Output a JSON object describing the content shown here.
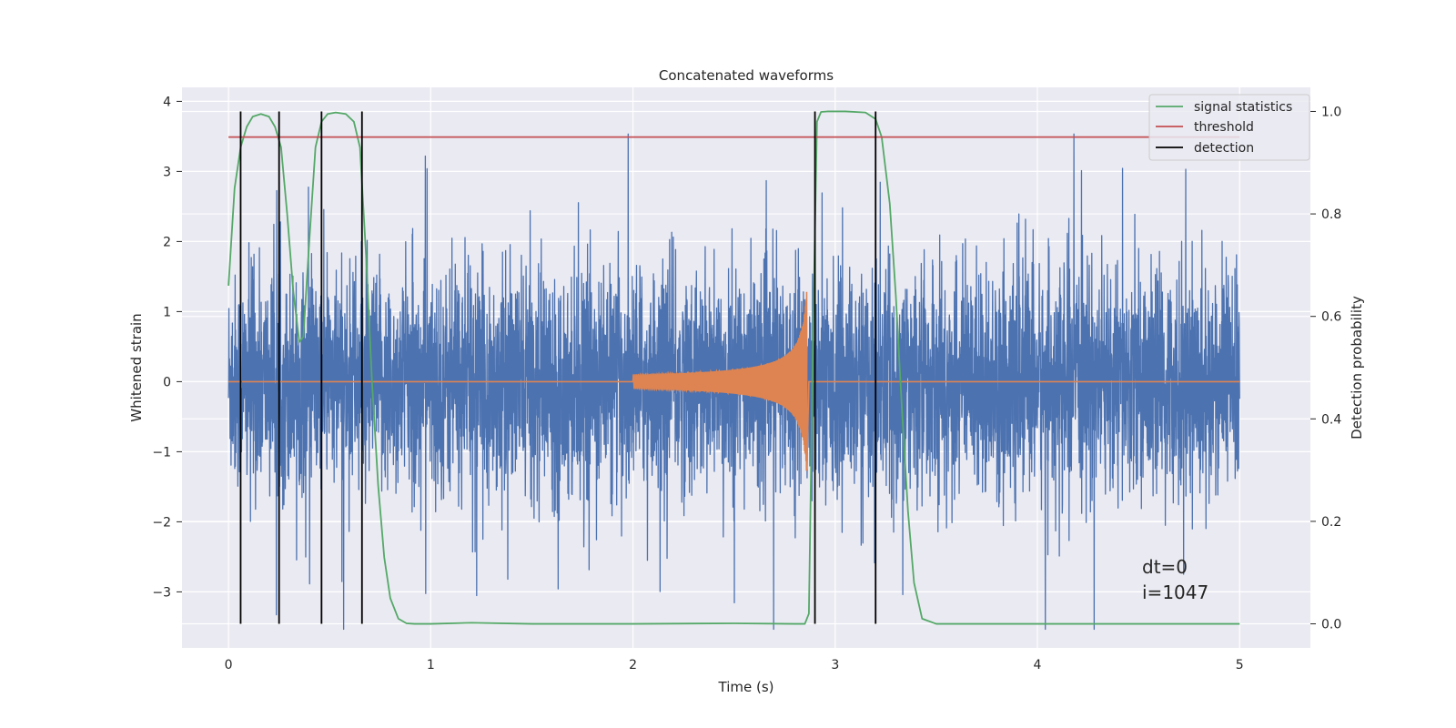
{
  "chart_data": {
    "type": "line",
    "title": "Concatenated waveforms",
    "xlabel": "Time (s)",
    "ylabel": "Whitened strain",
    "y2label": "Detection probability",
    "xlim": [
      -0.23,
      5.35
    ],
    "ylim": [
      -3.8,
      4.2
    ],
    "y2lim": [
      -0.047,
      1.047
    ],
    "xticks": [
      0,
      1,
      2,
      3,
      4,
      5
    ],
    "yticks": [
      -3,
      -2,
      -1,
      0,
      1,
      2,
      3,
      4
    ],
    "y2ticks": [
      0.0,
      0.2,
      0.4,
      0.6,
      0.8,
      1.0
    ],
    "xtick_labels": [
      "0",
      "1",
      "2",
      "3",
      "4",
      "5"
    ],
    "ytick_labels": [
      "−3",
      "−2",
      "−1",
      "0",
      "1",
      "2",
      "3",
      "4"
    ],
    "y2tick_labels": [
      "0.0",
      "0.2",
      "0.4",
      "0.6",
      "0.8",
      "1.0"
    ],
    "grid": true,
    "legend_position": "top-right",
    "series": [
      {
        "name": "",
        "axis": "left",
        "color": "#4c72b0",
        "kind": "noise",
        "x_range": [
          0,
          5
        ],
        "amplitude_typical": 1.0,
        "peak_max": 3.8,
        "peak_min": -3.5
      },
      {
        "name": "",
        "axis": "left",
        "color": "#dd8452",
        "kind": "chirp",
        "x_range": [
          0,
          5
        ],
        "chirp_start": 2.0,
        "chirp_end": 2.86,
        "peak_amplitude": 1.6
      },
      {
        "name": "signal statistics",
        "axis": "right",
        "color": "#55a868",
        "x": [
          0.0,
          0.03,
          0.06,
          0.09,
          0.12,
          0.16,
          0.2,
          0.23,
          0.26,
          0.29,
          0.32,
          0.35,
          0.37,
          0.4,
          0.43,
          0.46,
          0.49,
          0.53,
          0.58,
          0.62,
          0.65,
          0.68,
          0.71,
          0.74,
          0.77,
          0.8,
          0.84,
          0.88,
          0.92,
          1.0,
          1.2,
          1.5,
          2.0,
          2.5,
          2.8,
          2.85,
          2.87,
          2.89,
          2.91,
          2.93,
          2.96,
          3.05,
          3.15,
          3.2,
          3.23,
          3.27,
          3.3,
          3.33,
          3.36,
          3.39,
          3.43,
          3.5,
          4.0,
          4.5,
          5.0
        ],
        "y": [
          0.66,
          0.85,
          0.93,
          0.97,
          0.99,
          0.995,
          0.99,
          0.97,
          0.93,
          0.8,
          0.65,
          0.55,
          0.56,
          0.75,
          0.93,
          0.98,
          0.995,
          0.998,
          0.995,
          0.98,
          0.93,
          0.72,
          0.47,
          0.27,
          0.13,
          0.05,
          0.01,
          0.001,
          0.0,
          0.0,
          0.002,
          0.0,
          0.0,
          0.001,
          0.0,
          0.0,
          0.02,
          0.55,
          0.98,
          0.999,
          1.0,
          1.0,
          0.998,
          0.985,
          0.95,
          0.82,
          0.64,
          0.42,
          0.22,
          0.08,
          0.01,
          0.0,
          0.0,
          0.0,
          0.0
        ]
      },
      {
        "name": "threshold",
        "axis": "right",
        "color": "#c44e52",
        "x": [
          0,
          5
        ],
        "y": [
          0.95,
          0.95
        ]
      }
    ],
    "detections": {
      "name": "detection",
      "color": "#000000",
      "x": [
        0.06,
        0.25,
        0.46,
        0.66,
        2.9,
        3.2
      ],
      "y2_range": [
        0.0,
        1.0
      ]
    },
    "annotation": {
      "lines": [
        "dt=0",
        "i=1047"
      ],
      "x": 4.5,
      "y": -2.55
    }
  },
  "colors": {
    "background": "#ffffff",
    "plot_area": "#eaeaf2",
    "grid": "#ffffff",
    "text": "#262626"
  }
}
